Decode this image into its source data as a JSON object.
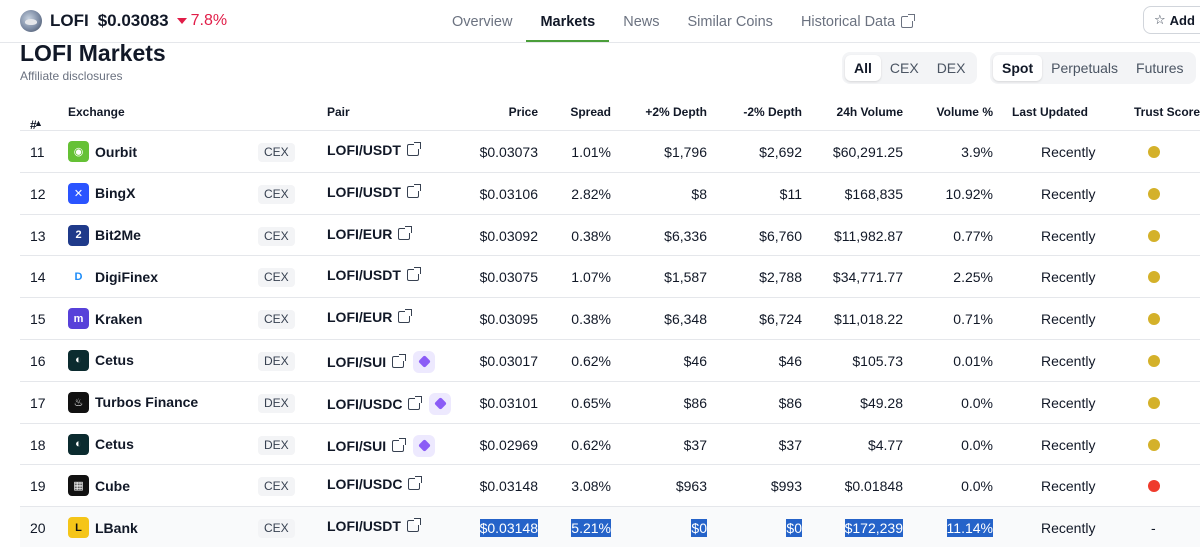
{
  "coin": {
    "symbol": "LOFI",
    "price": "$0.03083",
    "change": "7.8%"
  },
  "nav": {
    "tabs": [
      "Overview",
      "Markets",
      "News",
      "Similar Coins",
      "Historical Data"
    ],
    "active": "Markets"
  },
  "add_button": {
    "label": "Add"
  },
  "page": {
    "title": "LOFI Markets",
    "affiliate": "Affiliate disclosures"
  },
  "filters": {
    "venue": [
      "All",
      "CEX",
      "DEX"
    ],
    "venue_active": "All",
    "market": [
      "Spot",
      "Perpetuals",
      "Futures"
    ],
    "market_active": "Spot"
  },
  "table": {
    "headers": {
      "rank": "#",
      "exchange": "Exchange",
      "pair": "Pair",
      "price": "Price",
      "spread": "Spread",
      "depth_plus": "+2% Depth",
      "depth_minus": "-2% Depth",
      "volume": "24h Volume",
      "volume_pct": "Volume %",
      "updated": "Last Updated",
      "trust": "Trust Score"
    },
    "rows": [
      {
        "rank": "11",
        "exchange": "Ourbit",
        "type": "CEX",
        "pair": "LOFI/USDT",
        "price": "$0.03073",
        "spread": "1.01%",
        "depth_plus": "$1,796",
        "depth_minus": "$2,692",
        "volume": "$60,291.25",
        "volume_pct": "3.9%",
        "updated": "Recently",
        "trust": "yellow",
        "logo_color": "#65c135",
        "logo_glyph": "◉",
        "sui": false
      },
      {
        "rank": "12",
        "exchange": "BingX",
        "type": "CEX",
        "pair": "LOFI/USDT",
        "price": "$0.03106",
        "spread": "2.82%",
        "depth_plus": "$8",
        "depth_minus": "$11",
        "volume": "$168,835",
        "volume_pct": "10.92%",
        "updated": "Recently",
        "trust": "yellow",
        "logo_color": "#2a54ff",
        "logo_glyph": "✕",
        "sui": false
      },
      {
        "rank": "13",
        "exchange": "Bit2Me",
        "type": "CEX",
        "pair": "LOFI/EUR",
        "price": "$0.03092",
        "spread": "0.38%",
        "depth_plus": "$6,336",
        "depth_minus": "$6,760",
        "volume": "$11,982.87",
        "volume_pct": "0.77%",
        "updated": "Recently",
        "trust": "yellow",
        "logo_color": "#1f3a8a",
        "logo_glyph": "2",
        "sui": false
      },
      {
        "rank": "14",
        "exchange": "DigiFinex",
        "type": "CEX",
        "pair": "LOFI/USDT",
        "price": "$0.03075",
        "spread": "1.07%",
        "depth_plus": "$1,587",
        "depth_minus": "$2,788",
        "volume": "$34,771.77",
        "volume_pct": "2.25%",
        "updated": "Recently",
        "trust": "yellow",
        "logo_color": "#ffffff",
        "logo_glyph": "D",
        "sui": false
      },
      {
        "rank": "15",
        "exchange": "Kraken",
        "type": "CEX",
        "pair": "LOFI/EUR",
        "price": "$0.03095",
        "spread": "0.38%",
        "depth_plus": "$6,348",
        "depth_minus": "$6,724",
        "volume": "$11,018.22",
        "volume_pct": "0.71%",
        "updated": "Recently",
        "trust": "yellow",
        "logo_color": "#5741d9",
        "logo_glyph": "m",
        "sui": false
      },
      {
        "rank": "16",
        "exchange": "Cetus",
        "type": "DEX",
        "pair": "LOFI/SUI",
        "price": "$0.03017",
        "spread": "0.62%",
        "depth_plus": "$46",
        "depth_minus": "$46",
        "volume": "$105.73",
        "volume_pct": "0.01%",
        "updated": "Recently",
        "trust": "yellow",
        "logo_color": "#0b2b2f",
        "logo_glyph": "◐",
        "sui": true
      },
      {
        "rank": "17",
        "exchange": "Turbos Finance",
        "type": "DEX",
        "pair": "LOFI/USDC",
        "price": "$0.03101",
        "spread": "0.65%",
        "depth_plus": "$86",
        "depth_minus": "$86",
        "volume": "$49.28",
        "volume_pct": "0.0%",
        "updated": "Recently",
        "trust": "yellow",
        "logo_color": "#111111",
        "logo_glyph": "♨",
        "sui": true
      },
      {
        "rank": "18",
        "exchange": "Cetus",
        "type": "DEX",
        "pair": "LOFI/SUI",
        "price": "$0.02969",
        "spread": "0.62%",
        "depth_plus": "$37",
        "depth_minus": "$37",
        "volume": "$4.77",
        "volume_pct": "0.0%",
        "updated": "Recently",
        "trust": "yellow",
        "logo_color": "#0b2b2f",
        "logo_glyph": "◐",
        "sui": true
      },
      {
        "rank": "19",
        "exchange": "Cube",
        "type": "CEX",
        "pair": "LOFI/USDC",
        "price": "$0.03148",
        "spread": "3.08%",
        "depth_plus": "$963",
        "depth_minus": "$993",
        "volume": "$0.01848",
        "volume_pct": "0.0%",
        "updated": "Recently",
        "trust": "red",
        "logo_color": "#111111",
        "logo_glyph": "▦",
        "sui": false
      },
      {
        "rank": "20",
        "exchange": "LBank",
        "type": "CEX",
        "pair": "LOFI/USDT",
        "price": "$0.03148",
        "spread": "5.21%",
        "depth_plus": "$0",
        "depth_minus": "$0",
        "volume": "$172,239",
        "volume_pct": "11.14%",
        "updated": "Recently",
        "trust": "-",
        "logo_color": "#f5c518",
        "logo_glyph": "L",
        "sui": false,
        "highlight": true
      }
    ]
  },
  "colors": {
    "accent": "#4b9e3a",
    "down": "#e11d48",
    "trust_yellow": "#d4b12a",
    "trust_red": "#ef3b2c",
    "selection": "#2563c9"
  }
}
